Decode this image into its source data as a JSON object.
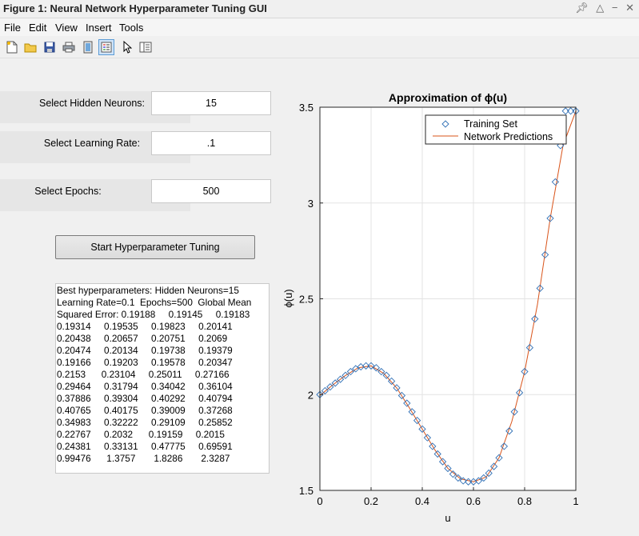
{
  "window": {
    "title": "Figure 1: Neural Network Hyperparameter Tuning GUI"
  },
  "menu": {
    "items": [
      "File",
      "Edit",
      "View",
      "Insert",
      "Tools"
    ]
  },
  "toolbar": {
    "icons": [
      "new-file-icon",
      "open-folder-icon",
      "save-icon",
      "print-icon",
      "link-plot-icon",
      "legend-toggle-icon",
      "pointer-icon",
      "property-editor-icon"
    ]
  },
  "controls": {
    "hidden_neurons": {
      "label": "Select Hidden Neurons:",
      "value": "15"
    },
    "learning_rate": {
      "label": "Select Learning Rate:",
      "value": ".1"
    },
    "epochs": {
      "label": "Select Epochs:",
      "value": "500"
    },
    "start_button": "Start Hyperparameter Tuning"
  },
  "results": {
    "lines": [
      "Best hyperparameters: Hidden Neurons=15",
      "Learning Rate=0.1  Epochs=500  Global Mean",
      "Squared Error: 0.19188     0.19145     0.19183",
      "0.19314     0.19535     0.19823     0.20141",
      "0.20438     0.20657     0.20751     0.2069",
      "0.20474     0.20134     0.19738     0.19379",
      "0.19166     0.19203     0.19578     0.20347",
      "0.2153      0.23104     0.25011     0.27166",
      "0.29464     0.31794     0.34042     0.36104",
      "0.37886     0.39304     0.40292     0.40794",
      "0.40765     0.40175     0.39009     0.37268",
      "0.34983     0.32222     0.29109     0.25852",
      "0.22767     0.2032      0.19159     0.2015",
      "0.24381     0.33131     0.47775     0.69591",
      "0.99476      1.3757       1.8286       2.3287"
    ]
  },
  "chart_data": {
    "type": "line",
    "title": "Approximation of ϕ(u)",
    "xlabel": "u",
    "ylabel": "ϕ(u)",
    "xlim": [
      0,
      1
    ],
    "ylim": [
      1.5,
      3.5
    ],
    "xticks": [
      "0",
      "0.2",
      "0.4",
      "0.6",
      "0.8",
      "1"
    ],
    "yticks": [
      "1.5",
      "2",
      "2.5",
      "3",
      "3.5"
    ],
    "grid": true,
    "legend_position": "top-right",
    "legend": [
      "Training Set",
      "Network Predictions"
    ],
    "series": [
      {
        "name": "Training Set",
        "marker": "diamond",
        "x": [
          0,
          0.02,
          0.04,
          0.06,
          0.08,
          0.1,
          0.12,
          0.14,
          0.16,
          0.18,
          0.2,
          0.22,
          0.24,
          0.26,
          0.28,
          0.3,
          0.32,
          0.34,
          0.36,
          0.38,
          0.4,
          0.42,
          0.44,
          0.46,
          0.48,
          0.5,
          0.52,
          0.54,
          0.56,
          0.58,
          0.6,
          0.62,
          0.64,
          0.66,
          0.68,
          0.7,
          0.72,
          0.74,
          0.76,
          0.78,
          0.8,
          0.82,
          0.84,
          0.86,
          0.88,
          0.9,
          0.92,
          0.94,
          0.96,
          0.98,
          1
        ],
        "y": [
          2.0,
          2.02,
          2.04,
          2.06,
          2.08,
          2.1,
          2.12,
          2.135,
          2.145,
          2.15,
          2.15,
          2.14,
          2.12,
          2.1,
          2.07,
          2.035,
          1.995,
          1.955,
          1.91,
          1.865,
          1.82,
          1.775,
          1.73,
          1.69,
          1.65,
          1.615,
          1.585,
          1.565,
          1.55,
          1.545,
          1.545,
          1.55,
          1.565,
          1.59,
          1.625,
          1.67,
          1.73,
          1.81,
          1.91,
          2.01,
          2.12,
          2.245,
          2.395,
          2.555,
          2.73,
          2.92,
          3.11,
          3.3,
          3.48,
          3.48,
          3.48
        ]
      },
      {
        "name": "Network Predictions",
        "marker": "line",
        "x": [
          0,
          0.05,
          0.1,
          0.15,
          0.2,
          0.25,
          0.3,
          0.35,
          0.4,
          0.45,
          0.5,
          0.55,
          0.6,
          0.65,
          0.7,
          0.75,
          0.8,
          0.85,
          0.9,
          0.95,
          1
        ],
        "y": [
          1.995,
          2.05,
          2.1,
          2.14,
          2.15,
          2.11,
          2.035,
          1.93,
          1.82,
          1.71,
          1.615,
          1.56,
          1.545,
          1.57,
          1.67,
          1.86,
          2.12,
          2.47,
          2.92,
          3.3,
          3.48
        ]
      }
    ],
    "colors": {
      "training_marker": "#2f6fb5",
      "prediction_line": "#d95319"
    }
  }
}
